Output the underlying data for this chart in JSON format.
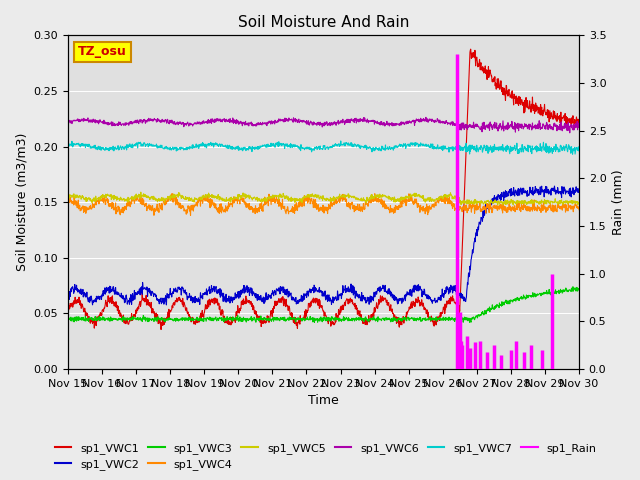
{
  "title": "Soil Moisture And Rain",
  "xlabel": "Time",
  "ylabel_left": "Soil Moisture (m3/m3)",
  "ylabel_right": "Rain (mm)",
  "ylim_left": [
    0.0,
    0.3
  ],
  "ylim_right": [
    0.0,
    3.5
  ],
  "n_days": 15,
  "event_day": 11.5,
  "station_label": "TZ_osu",
  "x_tick_labels": [
    "Nov 15",
    "Nov 16",
    "Nov 17",
    "Nov 18",
    "Nov 19",
    "Nov 20",
    "Nov 21",
    "Nov 22",
    "Nov 23",
    "Nov 24",
    "Nov 25",
    "Nov 26",
    "Nov 27",
    "Nov 28",
    "Nov 29",
    "Nov 30"
  ],
  "yticks_left": [
    0.0,
    0.05,
    0.1,
    0.15,
    0.2,
    0.25,
    0.3
  ],
  "yticks_right": [
    0.0,
    0.5,
    1.0,
    1.5,
    2.0,
    2.5,
    3.0,
    3.5
  ],
  "colors": {
    "VWC1": "#dd0000",
    "VWC2": "#0000cc",
    "VWC3": "#00cc00",
    "VWC4": "#ff8800",
    "VWC5": "#cccc00",
    "VWC6": "#aa00aa",
    "VWC7": "#00cccc",
    "Rain": "#ff00ff"
  },
  "labels": {
    "VWC1": "sp1_VWC1",
    "VWC2": "sp1_VWC2",
    "VWC3": "sp1_VWC3",
    "VWC4": "sp1_VWC4",
    "VWC5": "sp1_VWC5",
    "VWC6": "sp1_VWC6",
    "VWC7": "sp1_VWC7",
    "Rain": "sp1_Rain"
  },
  "rain_times": [
    11.42,
    11.46,
    11.5,
    11.54,
    11.58,
    11.7,
    11.8,
    11.95,
    12.1,
    12.3,
    12.5,
    12.7,
    13.0,
    13.15,
    13.4,
    13.6,
    13.9,
    14.2
  ],
  "rain_amounts": [
    3.3,
    0.4,
    0.6,
    0.3,
    0.25,
    0.35,
    0.22,
    0.28,
    0.3,
    0.18,
    0.25,
    0.15,
    0.2,
    0.3,
    0.18,
    0.25,
    0.2,
    1.0
  ],
  "fig_bg": "#ebebeb",
  "plot_bg": "#e0e0e0",
  "grid_color": "#ffffff",
  "lw": 0.8,
  "rain_lw": 2.5,
  "title_fontsize": 11,
  "label_fontsize": 9,
  "tick_fontsize": 8,
  "legend_fontsize": 8,
  "station_fontsize": 9
}
